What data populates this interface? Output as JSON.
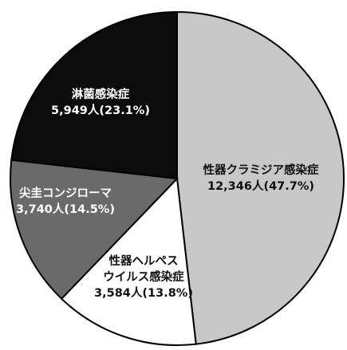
{
  "chart_data": {
    "type": "pie",
    "slices": [
      {
        "name": "性器クラミジア感染症",
        "lines": [
          "性器クラミジア感染症",
          "12,346人(47.7%)"
        ],
        "value": 12346,
        "percent": 47.7,
        "color": "#c8c8c8",
        "text_color": "#111111"
      },
      {
        "name": "性器ヘルペスウイルス感染症",
        "lines": [
          "性器ヘルペス",
          "ウイルス感染症",
          "3,584人(13.8%)"
        ],
        "value": 3584,
        "percent": 13.8,
        "color": "#ffffff",
        "text_color": "#111111"
      },
      {
        "name": "尖圭コンジローマ",
        "lines": [
          "尖圭コンジローマ",
          "3,740人(14.5%)"
        ],
        "value": 3740,
        "percent": 14.5,
        "color": "#6a6a6a",
        "text_color": "#ffffff"
      },
      {
        "name": "淋菌感染症",
        "lines": [
          "淋菌感染症",
          "5,949人(23.1%)"
        ],
        "value": 5949,
        "percent": 23.1,
        "color": "#0c0c0c",
        "text_color": "#ffffff"
      }
    ]
  }
}
